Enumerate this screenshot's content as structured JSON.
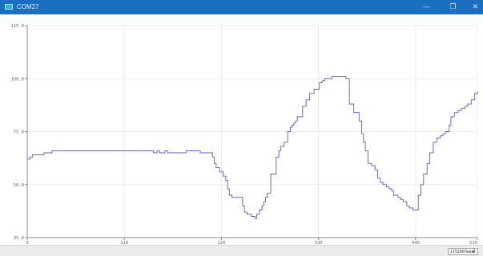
{
  "window": {
    "title": "COM27",
    "minimize_glyph": "—",
    "maximize_glyph": "❐",
    "close_glyph": "✕"
  },
  "footer": {
    "baud_rate": "115200 baud",
    "dropdown_glyph": "▾"
  },
  "colors": {
    "titlebar": "#1a6fc0",
    "line": "#5a5ad6",
    "grid": "#ececec",
    "axis": "#888888"
  },
  "chart_data": {
    "type": "line",
    "title": "",
    "xlabel": "",
    "ylabel": "",
    "xlim": [
      0,
      510
    ],
    "ylim": [
      25.0,
      125.0
    ],
    "x_ticks": [
      0,
      110,
      220,
      330,
      440,
      510
    ],
    "x_tick_labels": [
      "0",
      "110",
      "220",
      "330",
      "440",
      "510"
    ],
    "y_ticks": [
      25.0,
      50.0,
      75.0,
      100.0,
      125.0
    ],
    "y_tick_labels": [
      "25.0",
      "50.0",
      "75.0",
      "100.0",
      "125.0"
    ],
    "grid": true,
    "series": [
      {
        "name": "",
        "x": [
          0,
          3,
          6,
          15,
          19,
          28,
          60,
          120,
          140,
          143,
          147,
          150,
          156,
          159,
          180,
          196,
          209,
          210,
          212,
          214,
          218,
          222,
          225,
          227,
          229,
          232,
          237,
          243,
          244,
          246,
          249,
          254,
          258,
          260,
          263,
          266,
          268,
          270,
          272,
          276,
          282,
          285,
          287,
          291,
          295,
          298,
          300,
          302,
          304,
          306,
          312,
          316,
          320,
          325,
          331,
          334,
          337,
          341,
          345,
          348,
          351,
          355,
          361,
          365,
          370,
          376,
          379,
          381,
          383,
          386,
          390,
          394,
          397,
          400,
          403,
          407,
          410,
          413,
          415,
          417,
          420,
          423,
          426,
          430,
          433,
          435,
          437,
          440,
          443,
          446,
          449,
          453,
          456,
          460,
          464,
          468,
          471,
          474,
          476,
          478,
          480,
          484,
          488,
          492,
          496,
          499,
          503,
          507,
          510
        ],
        "y": [
          62.0,
          63.0,
          64.0,
          64.0,
          65.0,
          66.0,
          66.0,
          66.0,
          66.0,
          65.0,
          66.0,
          65.0,
          66.0,
          65.0,
          66.0,
          65.0,
          65.0,
          63.0,
          60.0,
          58.0,
          56.0,
          54.0,
          52.0,
          48.0,
          45.0,
          44.0,
          44.0,
          44.0,
          40.0,
          37.0,
          36.0,
          35.0,
          34.0,
          36.0,
          38.0,
          40.0,
          42.0,
          44.0,
          46.0,
          55.0,
          63.0,
          66.0,
          68.0,
          70.0,
          75.0,
          77.0,
          78.0,
          79.0,
          80.0,
          82.0,
          87.0,
          90.0,
          93.0,
          95.0,
          98.0,
          99.0,
          100.0,
          100.0,
          101.0,
          101.0,
          101.0,
          101.0,
          100.0,
          88.0,
          84.0,
          80.0,
          74.0,
          70.0,
          66.0,
          60.0,
          59.0,
          57.0,
          53.0,
          51.0,
          50.0,
          49.0,
          48.0,
          47.0,
          45.0,
          45.0,
          44.0,
          43.0,
          42.0,
          40.0,
          39.0,
          39.0,
          38.0,
          38.0,
          45.0,
          50.0,
          55.0,
          60.0,
          65.0,
          70.0,
          72.0,
          73.0,
          74.0,
          75.0,
          75.0,
          78.0,
          82.0,
          84.0,
          85.0,
          86.0,
          87.0,
          88.0,
          90.0,
          93.0,
          94.0
        ]
      }
    ]
  }
}
